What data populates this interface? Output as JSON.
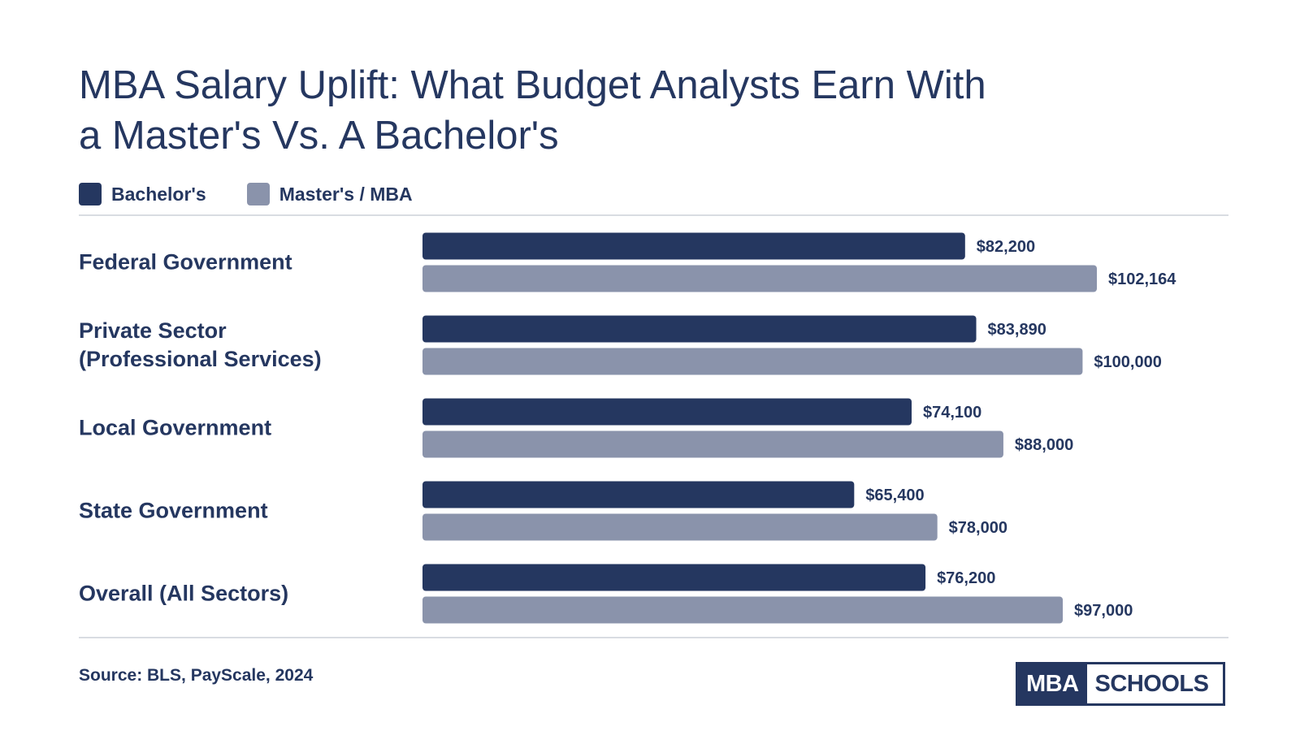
{
  "title_line1": "MBA Salary Uplift: What Budget Analysts Earn With",
  "title_line2": "a Master's Vs. A Bachelor's",
  "source": "Source: BLS, PayScale, 2024",
  "logo": {
    "left": "MBA",
    "right": "SCHOOLS"
  },
  "colors": {
    "bachelors": "#253760",
    "masters": "#8a93ab",
    "text": "#253760"
  },
  "chart_data": {
    "type": "bar",
    "orientation": "horizontal",
    "title": "MBA Salary Uplift: What Budget Analysts Earn With a Master's Vs. A Bachelor's",
    "legend": {
      "placement": "top-left"
    },
    "categories": [
      {
        "lines": [
          "Federal Government"
        ]
      },
      {
        "lines": [
          "Private Sector",
          "(Professional Services)"
        ]
      },
      {
        "lines": [
          "Local Government"
        ]
      },
      {
        "lines": [
          "State Government"
        ]
      },
      {
        "lines": [
          "Overall (All Sectors)"
        ]
      }
    ],
    "series": [
      {
        "name": "Bachelor's",
        "color": "#253760",
        "values": [
          82200,
          83890,
          74100,
          65400,
          76200
        ],
        "labels": [
          "$82,200",
          "$83,890",
          "$74,100",
          "$65,400",
          "$76,200"
        ]
      },
      {
        "name": "Master's / MBA",
        "color": "#8a93ab",
        "values": [
          102164,
          100000,
          88000,
          78000,
          97000
        ],
        "labels": [
          "$102,164",
          "$100,000",
          "$88,000",
          "$78,000",
          "$97,000"
        ]
      }
    ],
    "xlim": [
      0,
      102164
    ],
    "grid": false
  }
}
